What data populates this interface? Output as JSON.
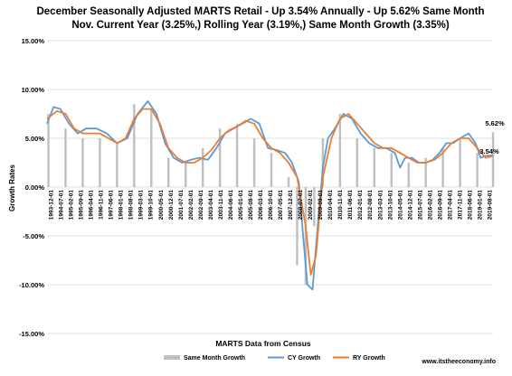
{
  "chart_data": {
    "type": "line",
    "title_line1": "December Seasonally Adjusted MARTS Retail - Up 3.54% Annually - Up 5.62% Same Month",
    "title_line2": "Nov. Current Year (3.25%,) Rolling Year (3.19%,) Same Month Growth (3.35%)",
    "xlabel": "MARTS Data from Census",
    "ylabel": "Growth Rates",
    "source": "www.itstheeconomy.info",
    "ylim": [
      -15,
      15
    ],
    "y_ticks": [
      "15.00%",
      "10.00%",
      "5.00%",
      "0.00%",
      "-5.00%",
      "-10.00%",
      "-15.00%"
    ],
    "y_tick_values": [
      15,
      10,
      5,
      0,
      -5,
      -10,
      -15
    ],
    "x_tick_labels": [
      "1993-12-01",
      "1994-07-01",
      "1995-02-01",
      "1995-09-01",
      "1996-04-01",
      "1996-11-01",
      "1997-06-01",
      "1998-01-01",
      "1998-08-01",
      "1999-03-01",
      "1999-10-01",
      "2000-05-01",
      "2000-12-01",
      "2001-07-01",
      "2002-02-01",
      "2002-09-01",
      "2003-04-01",
      "2003-11-01",
      "2004-06-01",
      "2005-01-01",
      "2005-08-01",
      "2006-03-01",
      "2006-10-01",
      "2007-05-01",
      "2007-12-01",
      "2008-07-01",
      "2009-02-01",
      "2009-09-01",
      "2010-04-01",
      "2010-11-01",
      "2011-06-01",
      "2012-01-01",
      "2012-08-01",
      "2013-03-01",
      "2013-10-01",
      "2014-05-01",
      "2014-12-01",
      "2015-07-01",
      "2016-02-01",
      "2016-09-01",
      "2017-04-01",
      "2017-11-01",
      "2018-06-01",
      "2019-01-01",
      "2019-08-01"
    ],
    "x_range_years": [
      1993.92,
      2019.92
    ],
    "end_labels": [
      "5.62%",
      "3.54%"
    ],
    "grid": true,
    "legend_position": "bottom",
    "series": [
      {
        "name": "Same Month Growth",
        "kind": "bar",
        "color": "#bfbfbf",
        "x": [
          1994,
          1995,
          1996,
          1997,
          1998,
          1999,
          2000,
          2001,
          2002,
          2003,
          2004,
          2005,
          2006,
          2007,
          2008,
          2008.5,
          2009,
          2009.5,
          2010,
          2011,
          2012,
          2013,
          2014,
          2015,
          2016,
          2017,
          2018,
          2019,
          2019.92
        ],
        "values": [
          7.5,
          6.0,
          5.0,
          5.0,
          4.5,
          8.5,
          8.0,
          3.0,
          2.5,
          4.0,
          6.0,
          6.5,
          5.0,
          3.5,
          1.0,
          -8.0,
          -10.0,
          -4.0,
          5.0,
          7.5,
          5.0,
          4.0,
          3.5,
          2.5,
          3.0,
          4.0,
          5.0,
          3.5,
          5.62
        ]
      },
      {
        "name": "CY Growth",
        "kind": "line",
        "color": "#5b9bd5",
        "x": [
          1993.92,
          1994.3,
          1994.7,
          1995.2,
          1995.7,
          1996.2,
          1996.8,
          1997.4,
          1998.0,
          1998.6,
          1999.2,
          1999.8,
          2000.3,
          2000.8,
          2001.3,
          2001.8,
          2002.3,
          2002.8,
          2003.3,
          2003.8,
          2004.3,
          2004.8,
          2005.3,
          2005.8,
          2006.3,
          2006.8,
          2007.3,
          2007.8,
          2008.2,
          2008.6,
          2008.85,
          2009.1,
          2009.4,
          2009.7,
          2010.0,
          2010.3,
          2010.7,
          2011.2,
          2011.7,
          2012.2,
          2012.7,
          2013.2,
          2013.7,
          2014.2,
          2014.5,
          2014.8,
          2015.2,
          2015.6,
          2016.0,
          2016.4,
          2016.8,
          2017.2,
          2017.6,
          2018.0,
          2018.5,
          2018.9,
          2019.2,
          2019.5,
          2019.92
        ],
        "values": [
          6.5,
          8.2,
          8.0,
          6.5,
          5.5,
          6.0,
          6.0,
          5.5,
          4.5,
          5.0,
          7.5,
          8.8,
          7.5,
          4.5,
          3.0,
          2.5,
          2.8,
          3.0,
          2.8,
          4.0,
          5.5,
          6.0,
          6.5,
          7.0,
          6.5,
          4.0,
          3.8,
          3.5,
          2.5,
          0.5,
          -5.0,
          -10.0,
          -10.5,
          -4.0,
          2.0,
          5.0,
          6.0,
          7.5,
          7.0,
          5.5,
          4.5,
          4.0,
          4.0,
          3.5,
          2.0,
          3.0,
          3.0,
          2.5,
          2.5,
          2.8,
          3.5,
          4.5,
          4.5,
          5.0,
          5.5,
          4.5,
          3.0,
          3.2,
          3.25
        ]
      },
      {
        "name": "RY Growth",
        "kind": "line",
        "color": "#ed7d31",
        "x": [
          1993.92,
          1994.5,
          1995.0,
          1995.5,
          1996.0,
          1996.5,
          1997.0,
          1997.5,
          1998.0,
          1998.5,
          1999.0,
          1999.5,
          2000.0,
          2000.5,
          2001.0,
          2001.5,
          2002.0,
          2002.5,
          2003.0,
          2003.5,
          2004.0,
          2004.5,
          2005.0,
          2005.5,
          2006.0,
          2006.5,
          2007.0,
          2007.5,
          2008.0,
          2008.5,
          2009.0,
          2009.3,
          2009.6,
          2010.0,
          2010.5,
          2011.0,
          2011.5,
          2012.0,
          2012.5,
          2013.0,
          2013.5,
          2014.0,
          2014.5,
          2015.0,
          2015.5,
          2016.0,
          2016.5,
          2017.0,
          2017.5,
          2018.0,
          2018.5,
          2019.0,
          2019.5,
          2019.92
        ],
        "values": [
          7.0,
          7.8,
          7.5,
          6.0,
          5.5,
          5.5,
          5.5,
          5.0,
          4.5,
          5.0,
          7.0,
          8.0,
          8.0,
          6.5,
          4.0,
          3.0,
          2.5,
          2.5,
          3.0,
          3.8,
          5.0,
          5.8,
          6.2,
          6.8,
          6.5,
          5.0,
          4.0,
          3.5,
          2.5,
          1.0,
          -4.0,
          -9.0,
          -7.0,
          1.0,
          5.0,
          7.0,
          7.5,
          6.5,
          5.5,
          4.5,
          4.0,
          4.0,
          3.5,
          3.0,
          2.5,
          2.5,
          2.8,
          3.5,
          4.5,
          5.0,
          5.0,
          4.0,
          3.0,
          3.19
        ]
      }
    ]
  }
}
